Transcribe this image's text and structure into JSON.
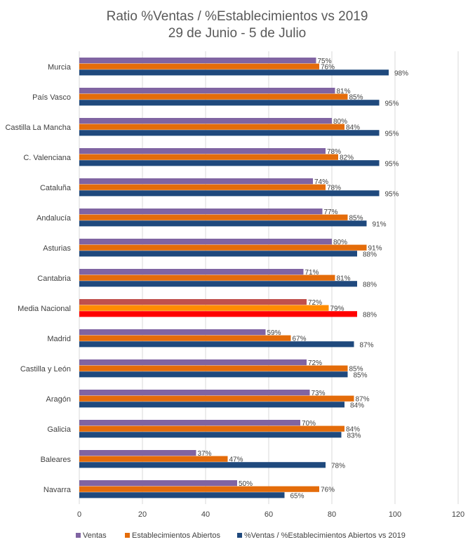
{
  "chart_data": {
    "type": "bar",
    "orientation": "horizontal",
    "title": "Ratio %Ventas / %Establecimientos vs 2019",
    "subtitle": "29 de Junio - 5 de Julio",
    "xlabel": "",
    "ylabel": "",
    "xlim": [
      0,
      120
    ],
    "xticks": [
      0,
      20,
      40,
      60,
      80,
      100,
      120
    ],
    "grid": true,
    "legend_position": "bottom",
    "categories": [
      "Murcia",
      "País Vasco",
      "Castilla La Mancha",
      "C. Valenciana",
      "Cataluña",
      "Andalucía",
      "Asturias",
      "Cantabria",
      "Media Nacional",
      "Madrid",
      "Castilla y León",
      "Aragón",
      "Galicia",
      "Baleares",
      "Navarra"
    ],
    "highlight_category": "Media Nacional",
    "highlight_colors": [
      "#c0504d",
      "#ff8c00",
      "#ff0000"
    ],
    "series": [
      {
        "name": "Ventas",
        "color": "#8064a2",
        "values": [
          75,
          81,
          80,
          78,
          74,
          77,
          80,
          71,
          72,
          59,
          72,
          73,
          70,
          37,
          50
        ],
        "labels": [
          "75%",
          "81%",
          "80%",
          "78%",
          "74%",
          "77%",
          "80%",
          "71%",
          "72%",
          "59%",
          "72%",
          "73%",
          "70%",
          "37%",
          "50%"
        ]
      },
      {
        "name": "Establecimientos Abiertos",
        "color": "#e46c0a",
        "values": [
          76,
          85,
          84,
          82,
          78,
          85,
          91,
          81,
          79,
          67,
          85,
          87,
          84,
          47,
          76
        ],
        "labels": [
          "76%",
          "85%",
          "84%",
          "82%",
          "78%",
          "85%",
          "91%",
          "81%",
          "79%",
          "67%",
          "85%",
          "87%",
          "84%",
          "47%",
          "76%"
        ]
      },
      {
        "name": "%Ventas / %Establecimientos Abiertos vs 2019",
        "color": "#1f497d",
        "values": [
          98,
          95,
          95,
          95,
          95,
          91,
          88,
          88,
          88,
          87,
          85,
          84,
          83,
          78,
          65
        ],
        "labels": [
          "98%",
          "95%",
          "95%",
          "95%",
          "95%",
          "91%",
          "88%",
          "88%",
          "88%",
          "87%",
          "85%",
          "84%",
          "83%",
          "78%",
          "65%"
        ]
      }
    ]
  }
}
